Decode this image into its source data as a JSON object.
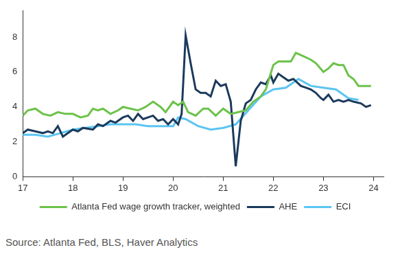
{
  "chart_data": {
    "type": "line",
    "source": "Source: Atlanta Fed, BLS, Haver Analytics",
    "xlim": [
      17,
      24.2
    ],
    "xticks": [
      17,
      18,
      19,
      20,
      21,
      22,
      23,
      24
    ],
    "ylim": [
      0,
      9.5
    ],
    "yticks": [
      0,
      2,
      4,
      6,
      8
    ],
    "grid": false,
    "legend": "bottom",
    "series": [
      {
        "name": "Atlanta Fed wage growth tracker, weighted",
        "color": "#6cc24a",
        "x": [
          17.0,
          17.1,
          17.25,
          17.4,
          17.55,
          17.7,
          17.85,
          18.0,
          18.15,
          18.3,
          18.4,
          18.5,
          18.6,
          18.75,
          18.9,
          19.0,
          19.15,
          19.3,
          19.45,
          19.6,
          19.75,
          19.85,
          20.0,
          20.1,
          20.2,
          20.3,
          20.45,
          20.6,
          20.7,
          20.85,
          21.0,
          21.15,
          21.3,
          21.45,
          21.6,
          21.75,
          21.85,
          22.0,
          22.1,
          22.25,
          22.35,
          22.45,
          22.6,
          22.75,
          22.85,
          23.0,
          23.1,
          23.2,
          23.3,
          23.4,
          23.5,
          23.6,
          23.7,
          23.8,
          23.95
        ],
        "values": [
          3.5,
          3.8,
          3.9,
          3.6,
          3.5,
          3.7,
          3.6,
          3.6,
          3.4,
          3.5,
          3.9,
          3.8,
          3.9,
          3.6,
          3.8,
          4.0,
          3.9,
          3.8,
          4.0,
          4.3,
          4.0,
          3.7,
          4.3,
          4.1,
          4.3,
          3.7,
          3.5,
          3.9,
          3.9,
          3.5,
          3.9,
          3.6,
          3.7,
          3.8,
          4.3,
          4.6,
          5.0,
          6.4,
          6.6,
          6.6,
          6.6,
          7.1,
          6.9,
          6.7,
          6.5,
          6.0,
          6.2,
          6.5,
          6.4,
          6.4,
          5.8,
          5.6,
          5.2,
          5.2,
          5.2
        ]
      },
      {
        "name": "AHE",
        "color": "#1b3a5c",
        "x": [
          17.0,
          17.1,
          17.25,
          17.4,
          17.5,
          17.6,
          17.7,
          17.8,
          17.9,
          18.0,
          18.1,
          18.2,
          18.4,
          18.5,
          18.6,
          18.75,
          18.85,
          19.0,
          19.1,
          19.2,
          19.3,
          19.4,
          19.5,
          19.6,
          19.7,
          19.8,
          19.9,
          20.0,
          20.1,
          20.17,
          20.25,
          20.35,
          20.45,
          20.55,
          20.65,
          20.75,
          20.85,
          20.95,
          21.05,
          21.15,
          21.25,
          21.35,
          21.45,
          21.55,
          21.65,
          21.75,
          21.85,
          21.95,
          22.0,
          22.1,
          22.2,
          22.3,
          22.4,
          22.55,
          22.65,
          22.75,
          22.85,
          22.95,
          23.0,
          23.1,
          23.2,
          23.3,
          23.4,
          23.5,
          23.6,
          23.75,
          23.85,
          23.95
        ],
        "values": [
          2.5,
          2.7,
          2.6,
          2.5,
          2.6,
          2.5,
          2.9,
          2.3,
          2.5,
          2.7,
          2.6,
          2.8,
          2.7,
          3.0,
          2.9,
          3.2,
          3.1,
          3.4,
          3.5,
          3.2,
          3.6,
          3.3,
          3.4,
          3.5,
          3.2,
          3.3,
          3.0,
          3.3,
          3.0,
          3.6,
          8.1,
          6.5,
          5.0,
          4.8,
          4.8,
          4.6,
          5.5,
          5.2,
          5.3,
          4.3,
          0.6,
          3.2,
          4.2,
          4.4,
          5.0,
          5.4,
          5.3,
          5.8,
          5.4,
          5.9,
          5.7,
          5.5,
          5.6,
          5.2,
          5.1,
          5.0,
          4.8,
          4.5,
          4.4,
          4.7,
          4.3,
          4.4,
          4.3,
          4.4,
          4.3,
          4.2,
          4.0,
          4.1
        ]
      },
      {
        "name": "ECI",
        "color": "#5bc5f2",
        "x": [
          17.0,
          17.25,
          17.5,
          17.75,
          18.0,
          18.25,
          18.5,
          18.75,
          19.0,
          19.25,
          19.5,
          19.75,
          20.0,
          20.1,
          20.25,
          20.5,
          20.75,
          21.0,
          21.25,
          21.5,
          21.75,
          22.0,
          22.25,
          22.5,
          22.75,
          23.0,
          23.25,
          23.5,
          23.7
        ],
        "values": [
          2.4,
          2.4,
          2.3,
          2.5,
          2.7,
          2.8,
          2.9,
          3.0,
          3.0,
          3.0,
          2.9,
          2.9,
          2.9,
          3.4,
          3.3,
          2.9,
          2.7,
          2.8,
          3.0,
          3.8,
          4.6,
          5.0,
          5.1,
          5.6,
          5.2,
          5.1,
          5.0,
          4.5,
          4.4
        ]
      }
    ]
  }
}
